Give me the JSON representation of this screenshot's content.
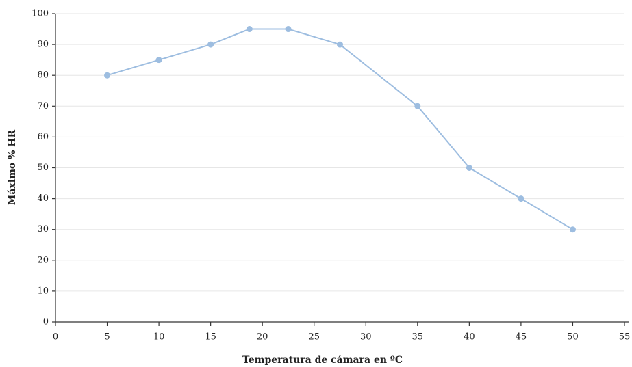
{
  "chart_data": {
    "type": "line",
    "x_label": "Temperatura de cámara en ºC",
    "y_label": "Máximo % HR",
    "x": [
      5,
      10,
      15,
      18.75,
      22.5,
      27.5,
      35,
      40,
      45,
      50
    ],
    "series": [
      {
        "color": "#9dbde0",
        "values": [
          80,
          85,
          90,
          95,
          95,
          90,
          70,
          50,
          40,
          30
        ]
      }
    ],
    "xlim": [
      0,
      55
    ],
    "xticks": [
      0,
      5,
      10,
      15,
      20,
      25,
      30,
      35,
      40,
      45,
      50,
      55
    ],
    "ylim": [
      0,
      100
    ],
    "yticks": [
      0,
      10,
      20,
      30,
      40,
      50,
      60,
      70,
      80,
      90,
      100
    ],
    "grid": true
  }
}
